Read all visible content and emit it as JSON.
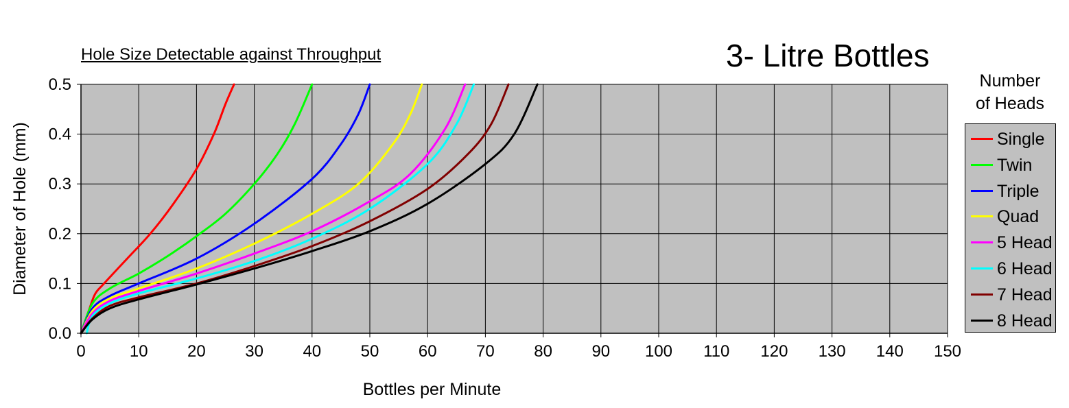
{
  "chart_data": {
    "type": "line",
    "title": "3- Litre Bottles",
    "subtitle": "Hole Size Detectable against Throughput",
    "xlabel": "Bottles per Minute",
    "ylabel": "Diameter of Hole (mm)",
    "xlim": [
      0,
      150
    ],
    "ylim": [
      0,
      0.5
    ],
    "xticks": [
      "0",
      "10",
      "20",
      "30",
      "40",
      "50",
      "60",
      "70",
      "80",
      "90",
      "100",
      "110",
      "120",
      "130",
      "140",
      "150"
    ],
    "yticks": [
      "0.0",
      "0.1",
      "0.2",
      "0.3",
      "0.4",
      "0.5"
    ],
    "grid": true,
    "plot_background": "#c0c0c0",
    "legend": {
      "title_line1": "Number",
      "title_line2": "of Heads",
      "placement": "right"
    },
    "series": [
      {
        "name": "Single",
        "color": "#ff0000",
        "x": [
          0,
          1.5,
          2.5,
          4,
          8,
          12,
          16,
          20,
          23,
          25,
          26.5
        ],
        "y": [
          0,
          0.05,
          0.08,
          0.1,
          0.15,
          0.2,
          0.26,
          0.33,
          0.4,
          0.46,
          0.5
        ]
      },
      {
        "name": "Twin",
        "color": "#00ff00",
        "x": [
          0,
          2,
          5,
          10,
          15,
          20,
          25,
          30,
          34,
          37,
          40
        ],
        "y": [
          0,
          0.06,
          0.09,
          0.12,
          0.155,
          0.195,
          0.24,
          0.3,
          0.36,
          0.42,
          0.5
        ]
      },
      {
        "name": "Triple",
        "color": "#0000ff",
        "x": [
          0,
          2,
          5,
          10,
          20,
          30,
          40,
          45,
          48,
          50
        ],
        "y": [
          0,
          0.05,
          0.075,
          0.1,
          0.15,
          0.22,
          0.31,
          0.38,
          0.44,
          0.5
        ]
      },
      {
        "name": "Quad",
        "color": "#ffff00",
        "x": [
          0,
          2,
          5,
          10,
          20,
          30,
          40,
          48,
          54,
          57,
          59
        ],
        "y": [
          0,
          0.045,
          0.07,
          0.09,
          0.13,
          0.18,
          0.24,
          0.3,
          0.38,
          0.44,
          0.5
        ]
      },
      {
        "name": "5 Head",
        "color": "#ff00ff",
        "x": [
          0,
          2,
          5,
          10,
          20,
          30,
          40,
          50,
          57,
          63,
          66.5
        ],
        "y": [
          0,
          0.04,
          0.065,
          0.085,
          0.12,
          0.16,
          0.205,
          0.265,
          0.32,
          0.41,
          0.5
        ]
      },
      {
        "name": "6 Head",
        "color": "#00ffff",
        "x": [
          1,
          2,
          5,
          10,
          20,
          30,
          40,
          50,
          60,
          65,
          68
        ],
        "y": [
          0,
          0.035,
          0.06,
          0.08,
          0.11,
          0.145,
          0.19,
          0.25,
          0.34,
          0.42,
          0.5
        ]
      },
      {
        "name": "7 Head",
        "color": "#800000",
        "x": [
          0,
          2,
          5,
          10,
          20,
          30,
          40,
          50,
          60,
          67,
          71,
          74
        ],
        "y": [
          0,
          0.03,
          0.055,
          0.072,
          0.1,
          0.135,
          0.175,
          0.225,
          0.29,
          0.36,
          0.42,
          0.5
        ]
      },
      {
        "name": "8 Head",
        "color": "#000000",
        "x": [
          0,
          2,
          5,
          10,
          20,
          30,
          40,
          50,
          60,
          70,
          75,
          79
        ],
        "y": [
          0,
          0.028,
          0.05,
          0.068,
          0.098,
          0.13,
          0.165,
          0.205,
          0.26,
          0.34,
          0.4,
          0.5
        ]
      }
    ]
  }
}
